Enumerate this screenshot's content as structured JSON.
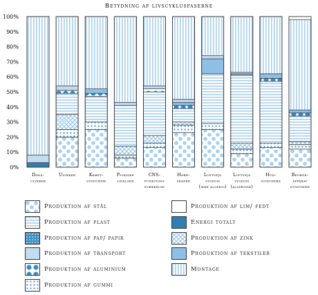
{
  "chart_data": {
    "type": "bar",
    "stacked": true,
    "title": "Betydning af livscyklusfaserne",
    "ylim": [
      0,
      100
    ],
    "yticks": [
      "0%",
      "10%",
      "20%",
      "30%",
      "40%",
      "50%",
      "60%",
      "70%",
      "80%",
      "90%",
      "100%"
    ],
    "grid": false,
    "categories": [
      [
        "Døds-",
        "ulykker"
      ],
      [
        "Ulykker"
      ],
      [
        "Kræft-",
        "sygdomme"
      ],
      [
        "Psykiske",
        "lidelser"
      ],
      [
        "CNS-",
        "funktions",
        "svækkelse"
      ],
      [
        "Høre-",
        "skader"
      ],
      [
        "Luftvejs",
        "sygdom",
        "(ikke allergi)"
      ],
      [
        "Luftvejs",
        "sygdom",
        "(allergisk)"
      ],
      [
        "Hud-",
        "sygdomme"
      ],
      [
        "Bevæge-",
        "apparat",
        "sygdomme"
      ]
    ],
    "series": [
      {
        "name": "Produktion af stål",
        "pattern": "big-dots",
        "values": [
          0,
          20,
          25,
          6,
          13,
          23,
          25,
          9,
          13,
          12
        ]
      },
      {
        "name": "Produktion af gummi",
        "pattern": "small-dots",
        "values": [
          0,
          5,
          5,
          2,
          3,
          5,
          4,
          3,
          3,
          3
        ]
      },
      {
        "name": "Produktion af zink",
        "pattern": "crosshatch",
        "values": [
          0,
          10,
          0,
          6,
          5,
          2,
          0,
          4,
          0,
          2
        ]
      },
      {
        "name": "Produktion af plast",
        "pattern": "h-lines",
        "values": [
          0,
          14,
          17,
          27,
          29,
          9,
          33,
          45,
          41,
          17
        ]
      },
      {
        "name": "Produktion af aluminium",
        "pattern": "dark-dots",
        "values": [
          0,
          2,
          2,
          0,
          2,
          2,
          0,
          0,
          2,
          2
        ]
      },
      {
        "name": "Produktion af tekstiler",
        "pattern": "light-blue",
        "values": [
          0,
          0,
          3,
          0,
          0,
          2,
          10,
          1,
          3,
          2
        ]
      },
      {
        "name": "Energi totalt",
        "pattern": "dark-blue",
        "values": [
          3,
          0,
          0,
          0,
          0,
          0,
          0,
          0,
          0,
          0
        ]
      },
      {
        "name": "Produktion af transport",
        "pattern": "pale-blue",
        "values": [
          5,
          3,
          0,
          2,
          2,
          2,
          2,
          1,
          0,
          0
        ]
      },
      {
        "name": "Produktion af pap/ papir",
        "pattern": "medium-dots",
        "values": [
          0,
          0,
          0,
          0,
          0,
          0,
          0,
          0,
          0,
          0
        ]
      },
      {
        "name": "Produktion af lim/ fedt",
        "pattern": "white",
        "values": [
          0,
          0,
          0,
          0,
          0,
          0,
          0,
          0,
          0,
          0
        ]
      },
      {
        "name": "Montage",
        "pattern": "v-lines",
        "values": [
          92,
          46,
          48,
          57,
          46,
          55,
          26,
          37,
          38,
          60
        ]
      }
    ]
  },
  "legend": {
    "col1": [
      "Produktion af stål",
      "Produktion af plast",
      "Produktion af pap/ papir",
      "Produktion af transport",
      "Produktion af aluminium",
      "Produktion af gummi"
    ],
    "col2": [
      "Produktion af lim/ fedt",
      "Energi totalt",
      "Produktion af zink",
      "Produktion af tekstiler",
      "Montage"
    ]
  },
  "colors": {
    "pale_blue": "#c3dcf2",
    "light_blue": "#8ec0e6",
    "mid_blue": "#5aa0d4",
    "dark_blue": "#2f7fb3",
    "outline": "#333333"
  }
}
